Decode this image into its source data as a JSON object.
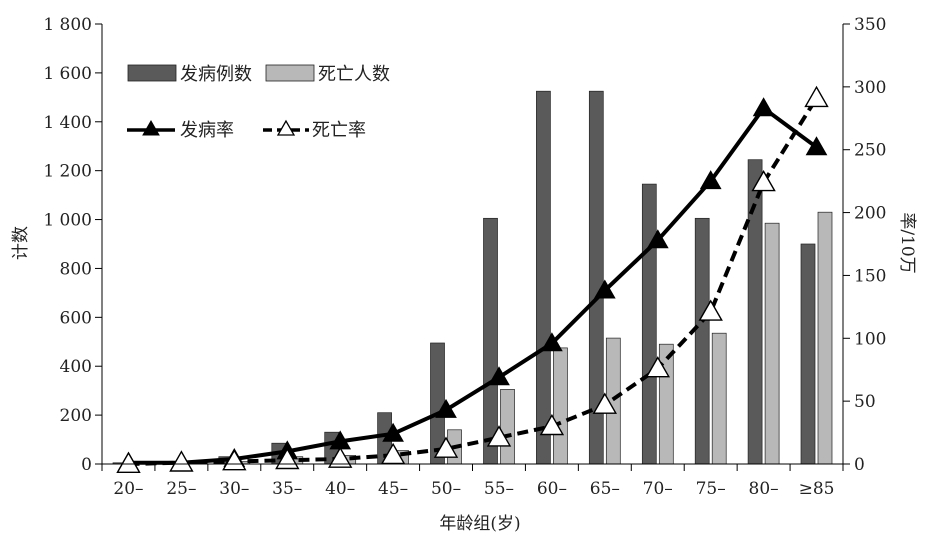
{
  "chart_data": {
    "type": "bar",
    "categories": [
      "20–",
      "25–",
      "30–",
      "35–",
      "40–",
      "45–",
      "50–",
      "55–",
      "60–",
      "65–",
      "70–",
      "75–",
      "80–",
      "≥85"
    ],
    "xlabel": "年龄组(岁)",
    "ylabel_left": "计数",
    "ylabel_right": "率/10万",
    "ylim_left": [
      0,
      1800
    ],
    "ylim_right": [
      0,
      350
    ],
    "yticks_left": [
      "0",
      "200",
      "400",
      "600",
      "800",
      "1 000",
      "1 200",
      "1 400",
      "1 600",
      "1 800"
    ],
    "yticks_right": [
      "0",
      "50",
      "100",
      "150",
      "200",
      "250",
      "300",
      "350"
    ],
    "bar_series": [
      {
        "name": "发病例数",
        "color": "#5a5a5a",
        "values": [
          5,
          10,
          30,
          85,
          130,
          210,
          495,
          1005,
          1525,
          1525,
          1145,
          1005,
          1245,
          900
        ]
      },
      {
        "name": "死亡人数",
        "color": "#b8b8b8",
        "values": [
          3,
          5,
          10,
          30,
          35,
          55,
          140,
          305,
          475,
          515,
          490,
          535,
          985,
          1030
        ]
      }
    ],
    "line_series": [
      {
        "name": "发病率",
        "style": "solid",
        "marker": "filled-triangle",
        "color": "#000000",
        "values": [
          1,
          1,
          4,
          10,
          18,
          24,
          43,
          69,
          96,
          138,
          178,
          225,
          283,
          252
        ]
      },
      {
        "name": "死亡率",
        "style": "dashed",
        "marker": "open-triangle",
        "color": "#000000",
        "values": [
          0,
          1,
          2,
          3,
          4,
          7,
          12,
          21,
          30,
          47,
          76,
          121,
          224,
          291
        ]
      }
    ],
    "legend": {
      "position": "top-left"
    },
    "grid": false
  }
}
